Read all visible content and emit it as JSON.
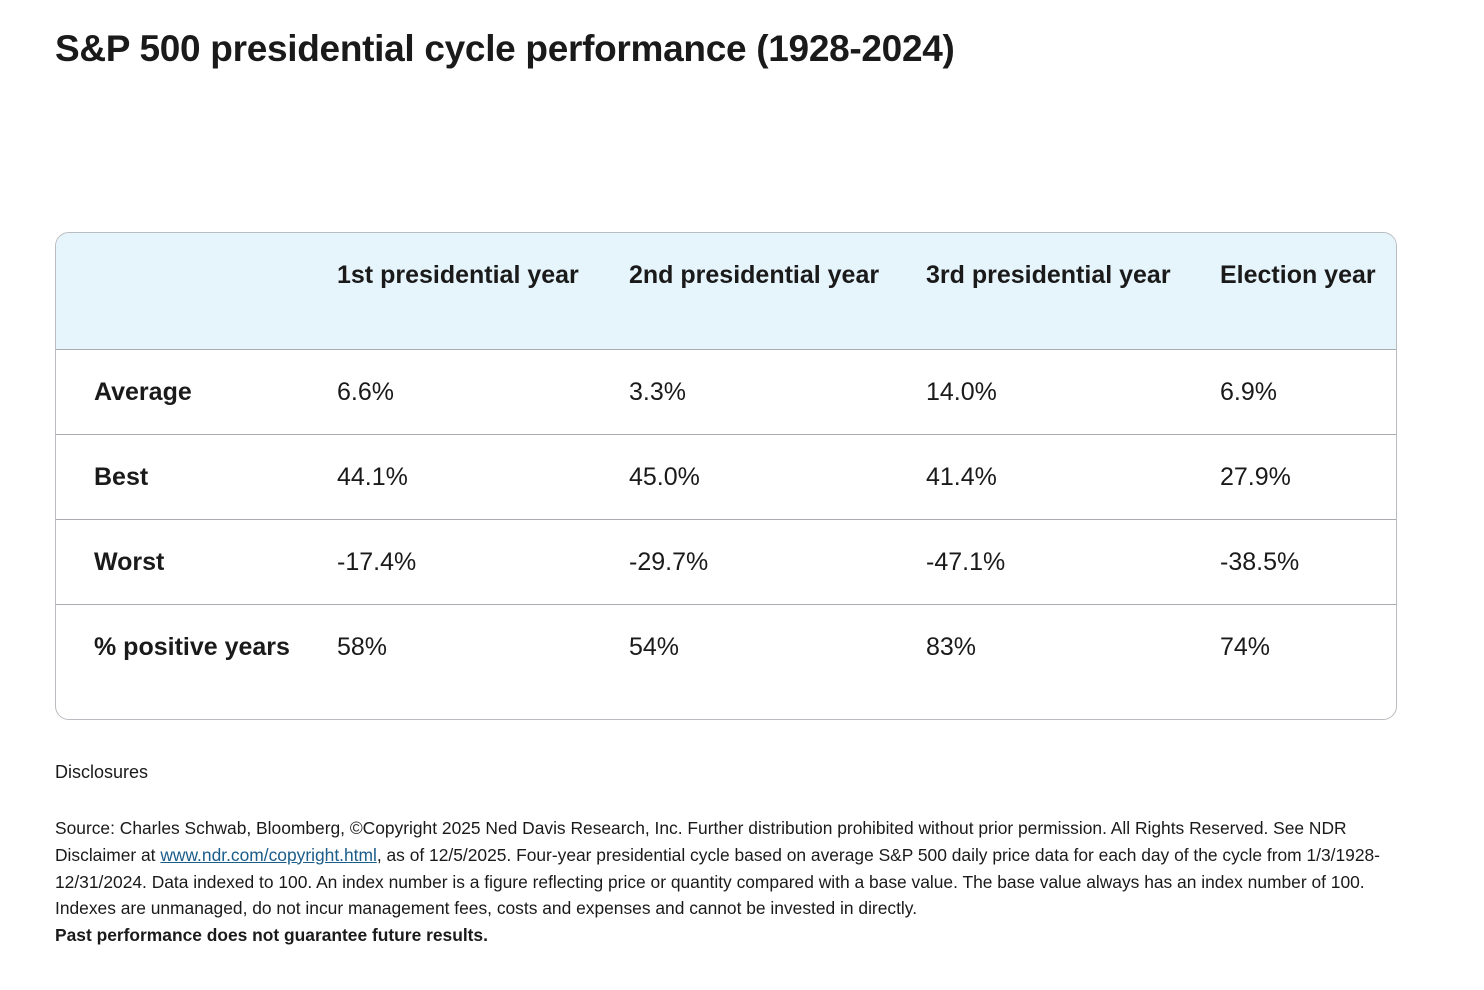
{
  "title": "S&P 500 presidential cycle performance (1928-2024)",
  "table": {
    "columns": [
      "",
      "1st presidential year",
      "2nd presidential year",
      "3rd presidential year",
      "Election year"
    ],
    "rows": [
      {
        "label": "Average",
        "values": [
          "6.6%",
          "3.3%",
          "14.0%",
          "6.9%"
        ]
      },
      {
        "label": "Best",
        "values": [
          "44.1%",
          "45.0%",
          "41.4%",
          "27.9%"
        ]
      },
      {
        "label": "Worst",
        "values": [
          "-17.4%",
          "-29.7%",
          "-47.1%",
          "-38.5%"
        ]
      },
      {
        "label": "% positive years",
        "values": [
          "58%",
          "54%",
          "83%",
          "74%"
        ]
      }
    ]
  },
  "disclosures": {
    "heading": "Disclosures",
    "source_before_link": "Source: Charles Schwab, Bloomberg, ©Copyright 2025 Ned Davis Research, Inc. Further distribution prohibited without prior permission. All Rights Reserved. See NDR Disclaimer at ",
    "link_text": "www.ndr.com/copyright.html",
    "source_after_link": ", as of 12/5/2025. Four-year presidential cycle based on average S&P 500 daily price data for each day of the cycle from 1/3/1928-12/31/2024. Data indexed to 100. An index number is a figure reflecting price or quantity compared with a base value. The base value always has an index number of 100. Indexes are unmanaged, do not incur management fees, costs and expenses and cannot be invested in directly.",
    "bold_note": "Past performance does not guarantee future results."
  }
}
